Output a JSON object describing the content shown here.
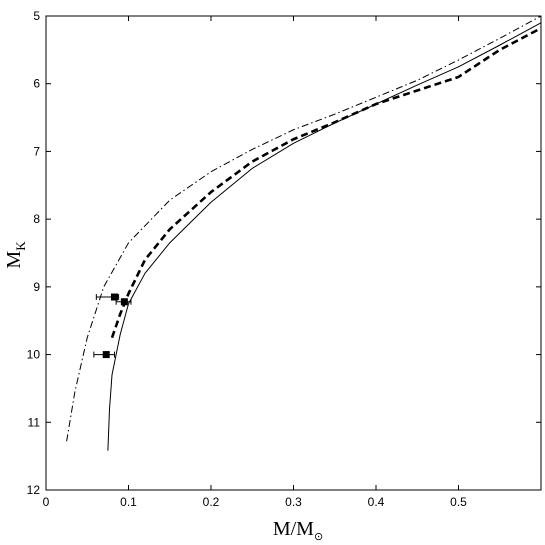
{
  "chart_data": {
    "type": "line",
    "title": "",
    "xlabel": "M/M",
    "xlabel_symbol": "⊙",
    "ylabel": "M",
    "ylabel_sub": "K",
    "xlim": [
      0,
      0.6
    ],
    "ylim": [
      12,
      5
    ],
    "y_inverted": true,
    "grid": false,
    "x_ticks": [
      0,
      0.1,
      0.2,
      0.3,
      0.4,
      0.5
    ],
    "x_tick_labels": [
      "0",
      "0.1",
      "0.2",
      "0.3",
      "0.4",
      "0.5"
    ],
    "y_ticks": [
      5,
      6,
      7,
      8,
      9,
      10,
      11,
      12
    ],
    "y_tick_labels": [
      "5",
      "6",
      "7",
      "8",
      "9",
      "10",
      "11",
      "12"
    ],
    "series": [
      {
        "style": "solid",
        "color": "#000000",
        "x": [
          0.075,
          0.077,
          0.08,
          0.085,
          0.09,
          0.1,
          0.12,
          0.15,
          0.2,
          0.25,
          0.3,
          0.35,
          0.4,
          0.45,
          0.5,
          0.55,
          0.6
        ],
        "y": [
          11.42,
          10.8,
          10.3,
          10.0,
          9.7,
          9.25,
          8.8,
          8.35,
          7.75,
          7.25,
          6.88,
          6.58,
          6.3,
          6.02,
          5.75,
          5.43,
          5.1
        ]
      },
      {
        "style": "dashed",
        "color": "#000000",
        "x": [
          0.08,
          0.09,
          0.1,
          0.12,
          0.15,
          0.2,
          0.25,
          0.3,
          0.35,
          0.4,
          0.45,
          0.5,
          0.55,
          0.6
        ],
        "y": [
          9.75,
          9.4,
          9.1,
          8.6,
          8.15,
          7.6,
          7.15,
          6.82,
          6.57,
          6.3,
          6.1,
          5.9,
          5.5,
          5.18
        ]
      },
      {
        "style": "dashdot",
        "color": "#000000",
        "x": [
          0.025,
          0.035,
          0.05,
          0.07,
          0.1,
          0.15,
          0.2,
          0.25,
          0.3,
          0.35,
          0.4,
          0.45,
          0.5,
          0.55,
          0.6
        ],
        "y": [
          11.28,
          10.55,
          9.75,
          9.0,
          8.35,
          7.72,
          7.3,
          6.97,
          6.68,
          6.45,
          6.2,
          5.95,
          5.65,
          5.33,
          5.0
        ]
      }
    ],
    "points": [
      {
        "x": 0.083,
        "y": 9.15,
        "xerr": [
          0.022,
          0.005
        ]
      },
      {
        "x": 0.095,
        "y": 9.22,
        "xerr": [
          0.01,
          0.008
        ]
      },
      {
        "x": 0.073,
        "y": 10.0,
        "xerr": [
          0.015,
          0.01
        ]
      }
    ]
  }
}
